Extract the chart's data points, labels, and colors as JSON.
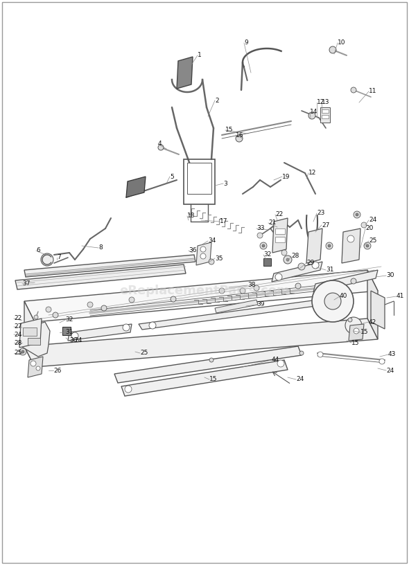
{
  "fig_width": 5.9,
  "fig_height": 8.16,
  "dpi": 100,
  "background_color": "#ffffff",
  "border_color": "#aaaaaa",
  "watermark_text": "eReplacementParts.com",
  "line_color": "#555555",
  "light_fill": "#f0f0f0",
  "medium_fill": "#e0e0e0",
  "dark_fill": "#888888",
  "label_fontsize": 6.5,
  "label_color": "#111111"
}
